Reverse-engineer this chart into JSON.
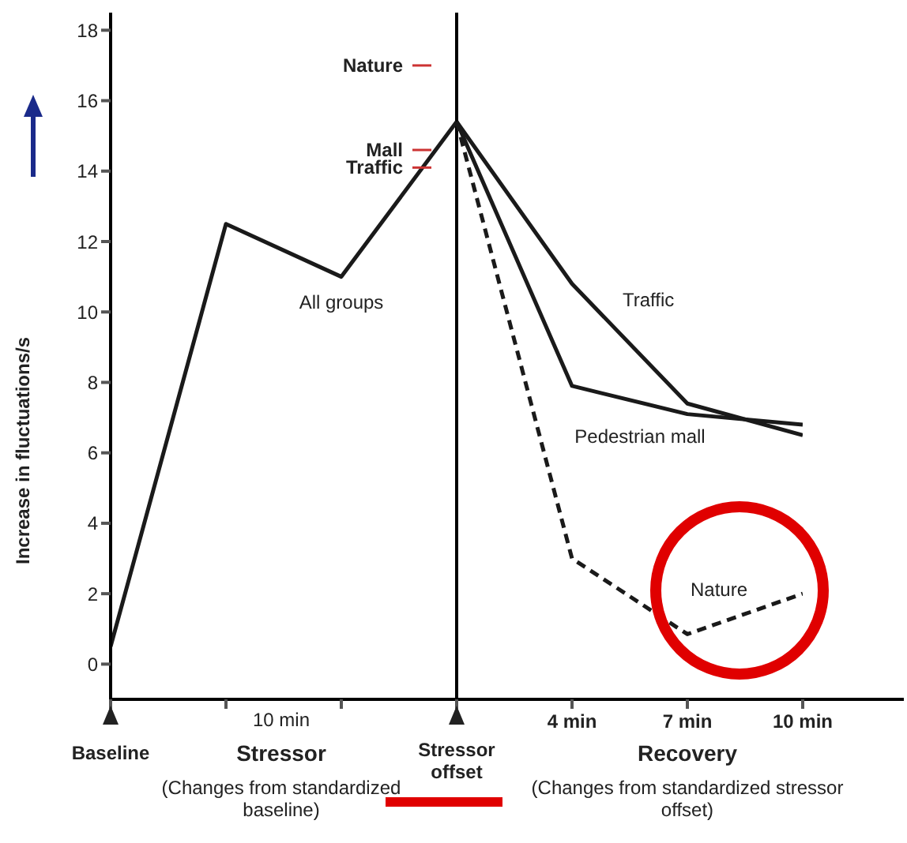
{
  "chart_data": {
    "type": "line",
    "ylabel": "Increase in fluctuations/s",
    "categories": [
      "Baseline",
      null,
      null,
      "Stressor offset",
      "4 min",
      "7 min",
      "10 min"
    ],
    "series": [
      {
        "name": "All groups",
        "color": "#1a1a1a",
        "values": [
          0.5,
          12.5,
          11,
          15.4,
          null,
          null,
          null
        ]
      },
      {
        "name": "Traffic",
        "color": "#1a1a1a",
        "values": [
          null,
          null,
          null,
          15.4,
          10.8,
          7.4,
          6.5
        ]
      },
      {
        "name": "Pedestrian mall",
        "color": "#1a1a1a",
        "values": [
          null,
          null,
          null,
          15.4,
          7.9,
          7.1,
          6.8
        ]
      },
      {
        "name": "Nature",
        "color": "#1a1a1a",
        "line_style": "dashed",
        "values": [
          null,
          null,
          null,
          15.4,
          3.0,
          0.85,
          2.0
        ]
      }
    ],
    "ylim": [
      -1,
      18.5
    ],
    "yticks": [
      0,
      2,
      4,
      6,
      8,
      10,
      12,
      14,
      16,
      18
    ],
    "ref_lines": [
      {
        "axis": "x",
        "value": "Stressor offset"
      }
    ],
    "annotations": [
      "10 min",
      "Stressor",
      "(Changes from standardized baseline)",
      "Recovery",
      "(Changes from standardized stressor offset)",
      {
        "text": "Nature",
        "x": "Stressor offset",
        "y": 17
      },
      {
        "text": "Mall",
        "x": "Stressor offset",
        "y": 14.6
      },
      {
        "text": "Traffic",
        "x": "Stressor offset",
        "y": 14.1
      }
    ],
    "grid": false,
    "legend": false
  }
}
